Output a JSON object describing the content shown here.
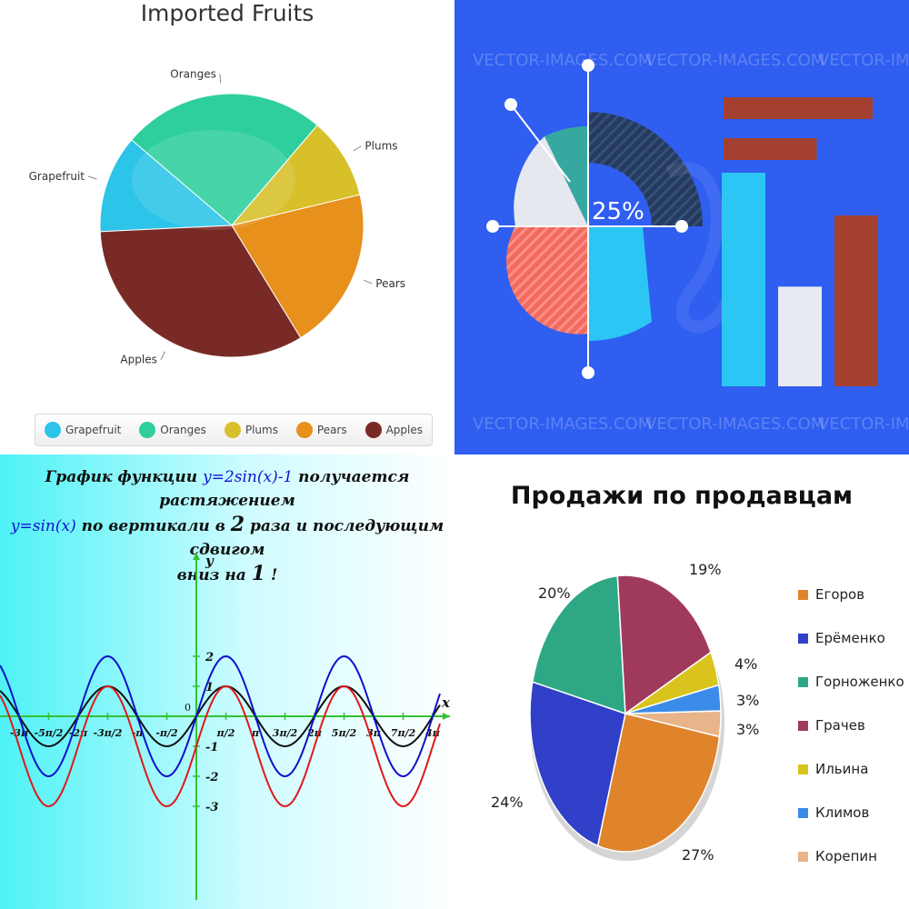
{
  "chart_data": [
    {
      "type": "pie",
      "title": "Imported Fruits",
      "categories": [
        "Grapefruit",
        "Oranges",
        "Plums",
        "Pears",
        "Apples"
      ],
      "values": [
        12,
        25,
        10,
        20,
        33
      ],
      "colors": [
        "#2cc4e8",
        "#2ecf9c",
        "#d8c02a",
        "#e8901c",
        "#7a2a26"
      ],
      "legend_position": "bottom",
      "legend": [
        "Grapefruit",
        "Oranges",
        "Plums",
        "Pears",
        "Apples"
      ]
    },
    {
      "type": "infographic",
      "donut_label": "25%",
      "watermark": "VECTOR-IMAGES.COM",
      "horizontal_bars": [
        0.8,
        0.5
      ],
      "vertical_bars": [
        0.75,
        0.35,
        0.6
      ],
      "bar_colors": [
        "#2cc6f4",
        "#e8ecf2",
        "#a44030"
      ],
      "background": "#2f5ef0"
    },
    {
      "type": "line",
      "title_parts": {
        "p1": "График функции ",
        "p2": "y=2sin(x)-1",
        "p3": " получается растяжением",
        "p4": "y=sin(x)",
        "p5": "  по вертикали в ",
        "p6": "2",
        "p7": " раза и последующим сдвигом",
        "p8": "вниз на ",
        "p9": "1",
        "p10": "  !"
      },
      "xlabel": "x",
      "ylabel": "y",
      "origin_label": "0",
      "xlim": [
        -9.4248,
        12.5664
      ],
      "ylim": [
        -3,
        2
      ],
      "x_ticks": [
        "-3π",
        "-5π/2",
        "-2π",
        "-3π/2",
        "-π",
        "-π/2",
        "π/2",
        "π",
        "3π/2",
        "2π",
        "5π/2",
        "3π",
        "7π/2",
        "4π"
      ],
      "y_ticks": [
        "2",
        "1",
        "-1",
        "-2",
        "-3"
      ],
      "series": [
        {
          "formula": "sin(x)",
          "color": "#111111"
        },
        {
          "formula": "2sin(x)",
          "color": "#1010c8"
        },
        {
          "formula": "2sin(x)-1",
          "color": "#e01818"
        }
      ],
      "axis_color": "#33c233"
    },
    {
      "type": "pie",
      "title": "Продажи по продавцам",
      "categories": [
        "Егоров",
        "Ерёменко",
        "Горноженко",
        "Грачев",
        "Ильина",
        "Климов",
        "Корепин"
      ],
      "values": [
        27,
        24,
        20,
        19,
        4,
        3,
        3
      ],
      "percent_labels": [
        "27%",
        "24%",
        "20%",
        "19%",
        "4%",
        "3%",
        "3%"
      ],
      "colors": [
        "#e0842c",
        "#3040c8",
        "#2ea884",
        "#a03a5c",
        "#d8c41c",
        "#3a8ce8",
        "#e8b48a"
      ],
      "legend_position": "right"
    }
  ]
}
